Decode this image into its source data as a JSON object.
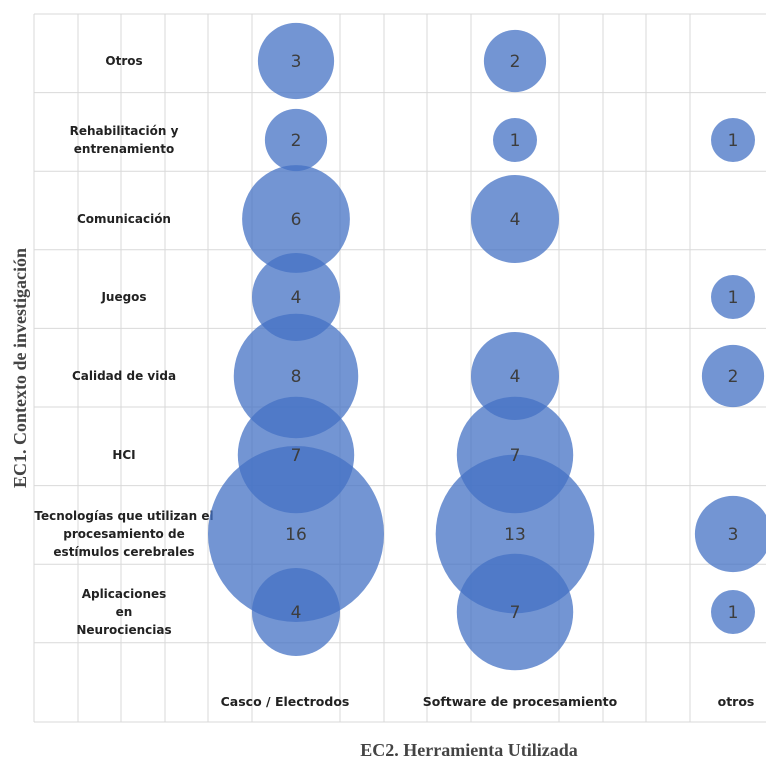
{
  "chart_data": {
    "type": "bubble",
    "xlabel": "EC2. Herramienta Utilizada",
    "ylabel": "EC1.  Contexto de investigación",
    "x_categories": [
      "Casco / Electrodos",
      "Software de procesamiento",
      "otros"
    ],
    "y_categories": [
      [
        "Otros"
      ],
      [
        "Rehabilitación y",
        "entrenamiento"
      ],
      [
        "Comunicación"
      ],
      [
        "Juegos"
      ],
      [
        "Calidad de vida"
      ],
      [
        "HCI"
      ],
      [
        "Tecnologías que utilizan el",
        "procesamiento de",
        "estímulos cerebrales"
      ],
      [
        "Aplicaciones",
        "en",
        "Neurociencias"
      ]
    ],
    "points": [
      {
        "x": "Casco / Electrodos",
        "y": 0,
        "value": 3
      },
      {
        "x": "Casco / Electrodos",
        "y": 1,
        "value": 2
      },
      {
        "x": "Casco / Electrodos",
        "y": 2,
        "value": 6
      },
      {
        "x": "Casco / Electrodos",
        "y": 3,
        "value": 4
      },
      {
        "x": "Casco / Electrodos",
        "y": 4,
        "value": 8
      },
      {
        "x": "Casco / Electrodos",
        "y": 5,
        "value": 7
      },
      {
        "x": "Casco / Electrodos",
        "y": 6,
        "value": 16
      },
      {
        "x": "Casco / Electrodos",
        "y": 7,
        "value": 4
      },
      {
        "x": "Software de procesamiento",
        "y": 0,
        "value": 2
      },
      {
        "x": "Software de procesamiento",
        "y": 1,
        "value": 1
      },
      {
        "x": "Software de procesamiento",
        "y": 2,
        "value": 4
      },
      {
        "x": "Software de procesamiento",
        "y": 4,
        "value": 4
      },
      {
        "x": "Software de procesamiento",
        "y": 5,
        "value": 7
      },
      {
        "x": "Software de procesamiento",
        "y": 6,
        "value": 13
      },
      {
        "x": "Software de procesamiento",
        "y": 7,
        "value": 7
      },
      {
        "x": "otros",
        "y": 1,
        "value": 1
      },
      {
        "x": "otros",
        "y": 3,
        "value": 1
      },
      {
        "x": "otros",
        "y": 4,
        "value": 2
      },
      {
        "x": "otros",
        "y": 6,
        "value": 3
      },
      {
        "x": "otros",
        "y": 7,
        "value": 1
      }
    ],
    "grid": true,
    "bubble_color": "#4472c4"
  }
}
